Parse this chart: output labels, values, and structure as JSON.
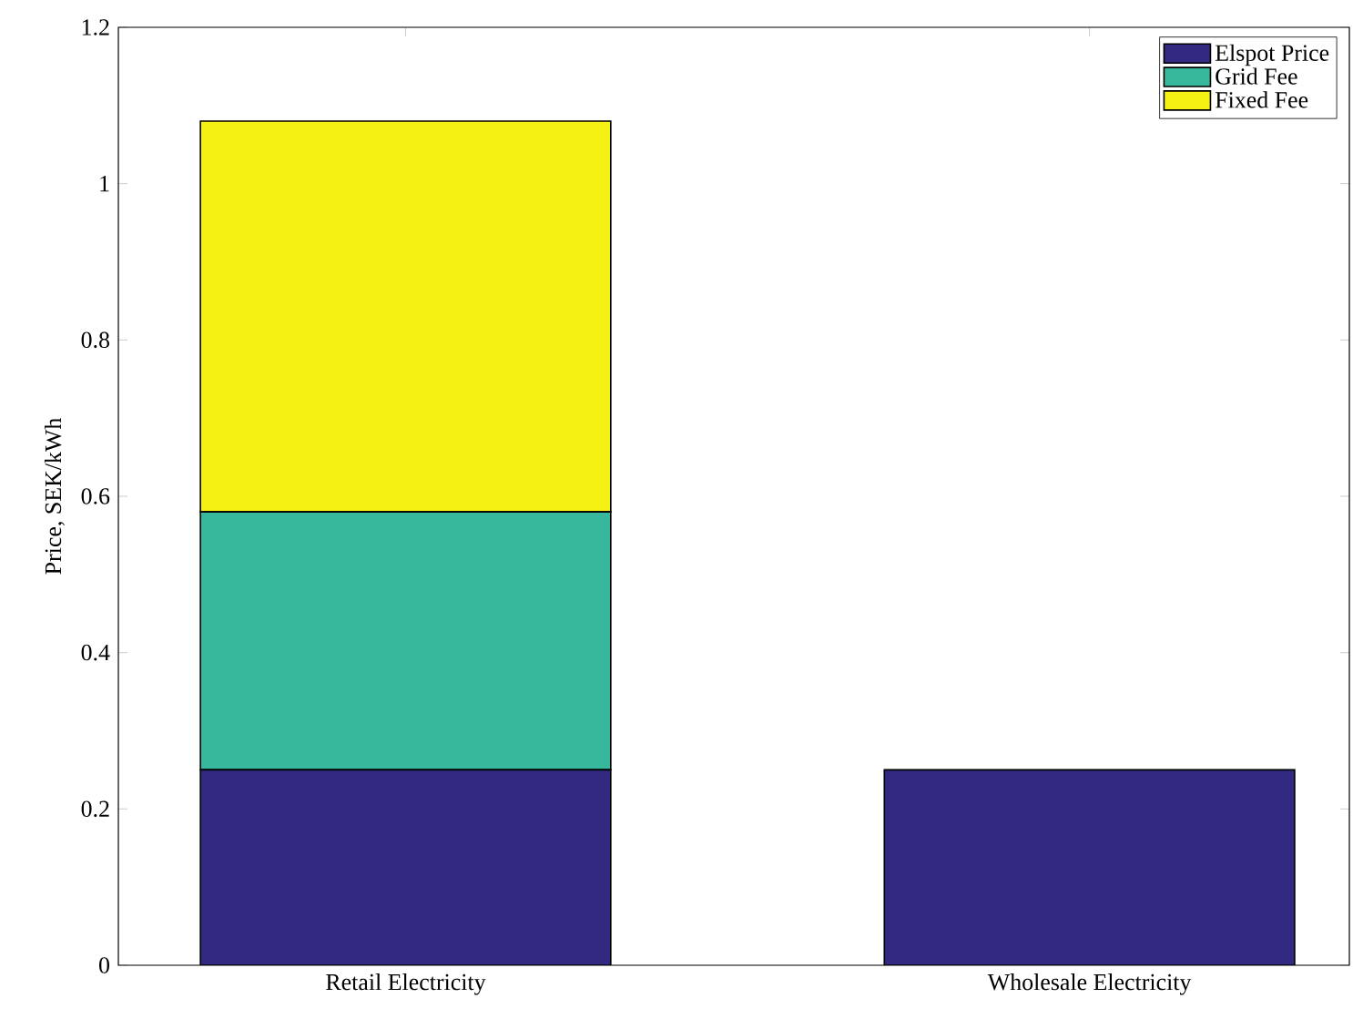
{
  "chart_data": {
    "type": "bar",
    "stacked": true,
    "categories": [
      "Retail Electricity",
      "Wholesale Electricity"
    ],
    "series": [
      {
        "name": "Elspot Price",
        "color": "#312a80",
        "values": [
          0.25,
          0.25
        ]
      },
      {
        "name": "Grid Fee",
        "color": "#37b89c",
        "values": [
          0.33,
          null
        ]
      },
      {
        "name": "Fixed Fee",
        "color": "#f5f112",
        "values": [
          0.5,
          null
        ]
      }
    ],
    "ylabel": "Price, SEK/kWh",
    "ylim": [
      0,
      1.2
    ],
    "yticks": [
      0,
      0.2,
      0.4,
      0.6,
      0.8,
      1,
      1.2
    ],
    "legend": "top right",
    "grid": false
  }
}
